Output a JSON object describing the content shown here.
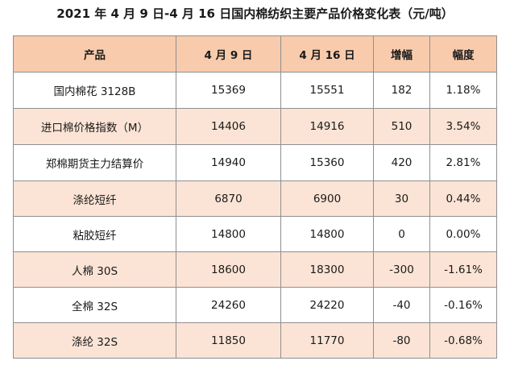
{
  "title": "2021 年 4 月 9 日-4 月 16 日国内棉纺织主要产品价格变化表（元/吨）",
  "headers": [
    "产品",
    "4 月 9 日",
    "4 月 16 日",
    "增幅",
    "幅度"
  ],
  "rows": [
    [
      "国内棉花 3128B",
      "15369",
      "15551",
      "182",
      "1.18%"
    ],
    [
      "进口棉价格指数（M）",
      "14406",
      "14916",
      "510",
      "3.54%"
    ],
    [
      "郑棉期货主力结算价",
      "14940",
      "15360",
      "420",
      "2.81%"
    ],
    [
      "涤纶短纤",
      "6870",
      "6900",
      "30",
      "0.44%"
    ],
    [
      "粘胶短纤",
      "14800",
      "14800",
      "0",
      "0.00%"
    ],
    [
      "人棉 30S",
      "18600",
      "18300",
      "-300",
      "-1.61%"
    ],
    [
      "全棉 32S",
      "24260",
      "24220",
      "-40",
      "-0.16%"
    ],
    [
      "涤纶 32S",
      "11850",
      "11770",
      "-80",
      "-0.68%"
    ]
  ],
  "colors": {
    "header_bg": "#f8cbad",
    "band_bg": "#fbe4d5",
    "border": "#8f8f8f"
  }
}
